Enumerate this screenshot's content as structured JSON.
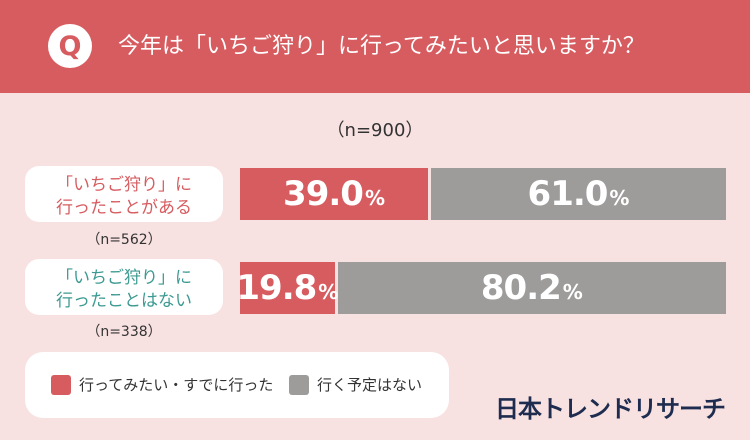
{
  "header": {
    "q_mark": "Q",
    "question": "今年は「いちご狩り」に行ってみたいと思いますか？"
  },
  "chart_data": {
    "type": "bar",
    "stacked": true,
    "orientation": "horizontal",
    "sample_total": "（n=900）",
    "categories": [
      {
        "line1": "「いちご狩り」に",
        "line2": "行ったことがある",
        "n": "（n=562）"
      },
      {
        "line1": "「いちご狩り」に",
        "line2": "行ったことはない",
        "n": "（n=338）"
      }
    ],
    "series": [
      {
        "name": "行ってみたい・すでに行った",
        "values": [
          39.0,
          19.8
        ],
        "labels": [
          "39.0",
          "19.8"
        ],
        "color": "#d75c60"
      },
      {
        "name": "行く予定はない",
        "values": [
          61.0,
          80.2
        ],
        "labels": [
          "61.0",
          "80.2"
        ],
        "color": "#9e9c9b"
      }
    ],
    "unit": "%",
    "category_label_colors": [
      "#d75c60",
      "#3c9a92"
    ],
    "legend_position": "bottom-left"
  },
  "brand": "日本トレンドリサーチ"
}
